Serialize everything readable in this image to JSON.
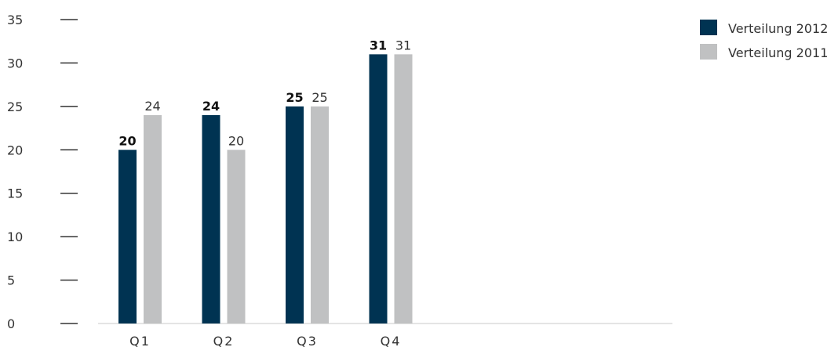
{
  "chart_data": {
    "type": "bar",
    "categories": [
      "Q1",
      "Q2",
      "Q3",
      "Q4"
    ],
    "series": [
      {
        "name": "Verteilung 2012",
        "values": [
          20,
          24,
          25,
          31
        ],
        "color": "#003352",
        "label_style": "bold"
      },
      {
        "name": "Verteilung 2011",
        "values": [
          24,
          20,
          25,
          31
        ],
        "color": "#c0c1c2",
        "label_style": "normal"
      }
    ],
    "y_ticks": [
      "0",
      "5",
      "10",
      "15",
      "20",
      "25",
      "30",
      "35"
    ],
    "ylim": [
      0,
      35
    ],
    "grid": false,
    "legend_position": "top-right",
    "colors": {
      "axis": "#c8c8c8",
      "tick_mark": "#333333"
    }
  }
}
